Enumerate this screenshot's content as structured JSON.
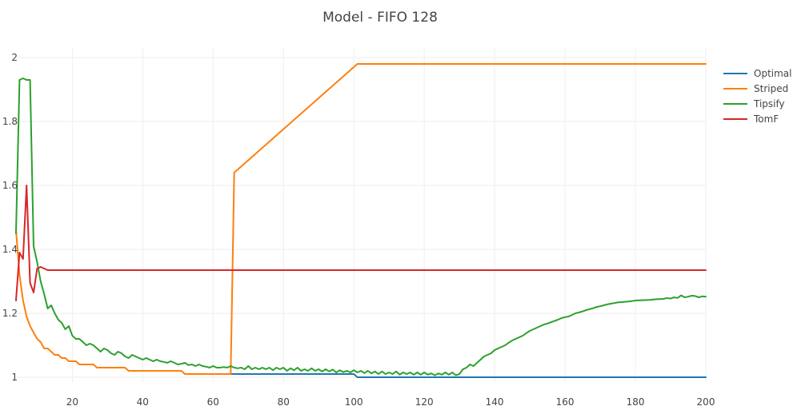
{
  "chart_data": {
    "type": "line",
    "title": "Model - FIFO 128",
    "xlabel": "",
    "ylabel": "",
    "xlim": [
      4,
      200
    ],
    "ylim": [
      0.985,
      2.03
    ],
    "xticks": [
      20,
      40,
      60,
      80,
      100,
      120,
      140,
      160,
      180,
      200
    ],
    "yticks": [
      1,
      1.2,
      1.4,
      1.6,
      1.8,
      2
    ],
    "grid": true,
    "legend_position": "top-right",
    "series": [
      {
        "name": "Optimal",
        "color": "#1f77b4",
        "points": [
          [
            65,
            1.01
          ],
          [
            70,
            1.01
          ],
          [
            80,
            1.01
          ],
          [
            90,
            1.01
          ],
          [
            100,
            1.01
          ],
          [
            101,
            1.0
          ],
          [
            120,
            1.0
          ],
          [
            140,
            1.0
          ],
          [
            160,
            1.0
          ],
          [
            180,
            1.0
          ],
          [
            200,
            1.0
          ]
        ]
      },
      {
        "name": "Striped",
        "color": "#ff7f0e",
        "points": [
          [
            4,
            1.46
          ],
          [
            5,
            1.32
          ],
          [
            6,
            1.24
          ],
          [
            7,
            1.19
          ],
          [
            8,
            1.16
          ],
          [
            9,
            1.14
          ],
          [
            10,
            1.12
          ],
          [
            11,
            1.11
          ],
          [
            12,
            1.09
          ],
          [
            13,
            1.09
          ],
          [
            14,
            1.08
          ],
          [
            15,
            1.07
          ],
          [
            16,
            1.07
          ],
          [
            17,
            1.06
          ],
          [
            18,
            1.06
          ],
          [
            19,
            1.05
          ],
          [
            20,
            1.05
          ],
          [
            21,
            1.05
          ],
          [
            22,
            1.04
          ],
          [
            23,
            1.04
          ],
          [
            26,
            1.04
          ],
          [
            27,
            1.03
          ],
          [
            35,
            1.03
          ],
          [
            36,
            1.02
          ],
          [
            51,
            1.02
          ],
          [
            52,
            1.01
          ],
          [
            65,
            1.01
          ],
          [
            66,
            1.64
          ],
          [
            101,
            1.98
          ],
          [
            120,
            1.98
          ],
          [
            140,
            1.98
          ],
          [
            160,
            1.98
          ],
          [
            180,
            1.98
          ],
          [
            200,
            1.98
          ]
        ]
      },
      {
        "name": "Tipsify",
        "color": "#2ca02c",
        "points": [
          [
            4,
            1.45
          ],
          [
            5,
            1.93
          ],
          [
            6,
            1.935
          ],
          [
            7,
            1.93
          ],
          [
            8,
            1.93
          ],
          [
            9,
            1.41
          ],
          [
            10,
            1.36
          ],
          [
            11,
            1.3
          ],
          [
            12,
            1.26
          ],
          [
            13,
            1.215
          ],
          [
            14,
            1.225
          ],
          [
            15,
            1.2
          ],
          [
            16,
            1.18
          ],
          [
            17,
            1.17
          ],
          [
            18,
            1.15
          ],
          [
            19,
            1.16
          ],
          [
            20,
            1.13
          ],
          [
            21,
            1.12
          ],
          [
            22,
            1.12
          ],
          [
            23,
            1.11
          ],
          [
            24,
            1.1
          ],
          [
            25,
            1.105
          ],
          [
            26,
            1.1
          ],
          [
            27,
            1.09
          ],
          [
            28,
            1.08
          ],
          [
            29,
            1.09
          ],
          [
            30,
            1.085
          ],
          [
            31,
            1.075
          ],
          [
            32,
            1.07
          ],
          [
            33,
            1.08
          ],
          [
            34,
            1.075
          ],
          [
            35,
            1.065
          ],
          [
            36,
            1.06
          ],
          [
            37,
            1.07
          ],
          [
            38,
            1.065
          ],
          [
            39,
            1.06
          ],
          [
            40,
            1.055
          ],
          [
            41,
            1.06
          ],
          [
            42,
            1.055
          ],
          [
            43,
            1.05
          ],
          [
            44,
            1.055
          ],
          [
            45,
            1.05
          ],
          [
            46,
            1.048
          ],
          [
            47,
            1.045
          ],
          [
            48,
            1.05
          ],
          [
            49,
            1.045
          ],
          [
            50,
            1.04
          ],
          [
            51,
            1.042
          ],
          [
            52,
            1.045
          ],
          [
            53,
            1.038
          ],
          [
            54,
            1.04
          ],
          [
            55,
            1.035
          ],
          [
            56,
            1.04
          ],
          [
            57,
            1.035
          ],
          [
            58,
            1.033
          ],
          [
            59,
            1.03
          ],
          [
            60,
            1.035
          ],
          [
            61,
            1.03
          ],
          [
            62,
            1.03
          ],
          [
            63,
            1.032
          ],
          [
            64,
            1.03
          ],
          [
            65,
            1.035
          ],
          [
            66,
            1.03
          ],
          [
            67,
            1.028
          ],
          [
            68,
            1.03
          ],
          [
            69,
            1.025
          ],
          [
            70,
            1.035
          ],
          [
            71,
            1.025
          ],
          [
            72,
            1.03
          ],
          [
            73,
            1.025
          ],
          [
            74,
            1.03
          ],
          [
            75,
            1.025
          ],
          [
            76,
            1.03
          ],
          [
            77,
            1.022
          ],
          [
            78,
            1.03
          ],
          [
            79,
            1.025
          ],
          [
            80,
            1.03
          ],
          [
            81,
            1.02
          ],
          [
            82,
            1.028
          ],
          [
            83,
            1.022
          ],
          [
            84,
            1.03
          ],
          [
            85,
            1.02
          ],
          [
            86,
            1.025
          ],
          [
            87,
            1.02
          ],
          [
            88,
            1.028
          ],
          [
            89,
            1.02
          ],
          [
            90,
            1.025
          ],
          [
            91,
            1.018
          ],
          [
            92,
            1.025
          ],
          [
            93,
            1.018
          ],
          [
            94,
            1.024
          ],
          [
            95,
            1.015
          ],
          [
            96,
            1.022
          ],
          [
            97,
            1.016
          ],
          [
            98,
            1.02
          ],
          [
            99,
            1.015
          ],
          [
            100,
            1.022
          ],
          [
            101,
            1.015
          ],
          [
            102,
            1.02
          ],
          [
            103,
            1.013
          ],
          [
            104,
            1.02
          ],
          [
            105,
            1.012
          ],
          [
            106,
            1.018
          ],
          [
            107,
            1.01
          ],
          [
            108,
            1.018
          ],
          [
            109,
            1.01
          ],
          [
            110,
            1.015
          ],
          [
            111,
            1.01
          ],
          [
            112,
            1.018
          ],
          [
            113,
            1.008
          ],
          [
            114,
            1.015
          ],
          [
            115,
            1.01
          ],
          [
            116,
            1.015
          ],
          [
            117,
            1.008
          ],
          [
            118,
            1.015
          ],
          [
            119,
            1.008
          ],
          [
            120,
            1.015
          ],
          [
            121,
            1.008
          ],
          [
            122,
            1.012
          ],
          [
            123,
            1.006
          ],
          [
            124,
            1.012
          ],
          [
            125,
            1.008
          ],
          [
            126,
            1.015
          ],
          [
            127,
            1.008
          ],
          [
            128,
            1.015
          ],
          [
            129,
            1.006
          ],
          [
            130,
            1.01
          ],
          [
            131,
            1.025
          ],
          [
            132,
            1.03
          ],
          [
            133,
            1.04
          ],
          [
            134,
            1.035
          ],
          [
            135,
            1.045
          ],
          [
            136,
            1.055
          ],
          [
            137,
            1.065
          ],
          [
            138,
            1.07
          ],
          [
            139,
            1.075
          ],
          [
            140,
            1.085
          ],
          [
            141,
            1.09
          ],
          [
            142,
            1.095
          ],
          [
            143,
            1.1
          ],
          [
            144,
            1.108
          ],
          [
            145,
            1.115
          ],
          [
            146,
            1.12
          ],
          [
            147,
            1.125
          ],
          [
            148,
            1.13
          ],
          [
            149,
            1.138
          ],
          [
            150,
            1.145
          ],
          [
            151,
            1.15
          ],
          [
            152,
            1.155
          ],
          [
            153,
            1.16
          ],
          [
            154,
            1.165
          ],
          [
            155,
            1.168
          ],
          [
            156,
            1.172
          ],
          [
            157,
            1.176
          ],
          [
            158,
            1.18
          ],
          [
            159,
            1.185
          ],
          [
            160,
            1.188
          ],
          [
            161,
            1.19
          ],
          [
            162,
            1.195
          ],
          [
            163,
            1.2
          ],
          [
            164,
            1.203
          ],
          [
            165,
            1.206
          ],
          [
            166,
            1.21
          ],
          [
            167,
            1.213
          ],
          [
            168,
            1.216
          ],
          [
            169,
            1.22
          ],
          [
            170,
            1.222
          ],
          [
            171,
            1.225
          ],
          [
            172,
            1.228
          ],
          [
            173,
            1.23
          ],
          [
            174,
            1.232
          ],
          [
            175,
            1.234
          ],
          [
            176,
            1.235
          ],
          [
            177,
            1.236
          ],
          [
            178,
            1.237
          ],
          [
            179,
            1.238
          ],
          [
            180,
            1.24
          ],
          [
            182,
            1.241
          ],
          [
            184,
            1.242
          ],
          [
            186,
            1.244
          ],
          [
            188,
            1.245
          ],
          [
            189,
            1.248
          ],
          [
            190,
            1.246
          ],
          [
            191,
            1.25
          ],
          [
            192,
            1.248
          ],
          [
            193,
            1.256
          ],
          [
            194,
            1.25
          ],
          [
            195,
            1.252
          ],
          [
            196,
            1.255
          ],
          [
            197,
            1.254
          ],
          [
            198,
            1.25
          ],
          [
            199,
            1.253
          ],
          [
            200,
            1.252
          ]
        ]
      },
      {
        "name": "TomF",
        "color": "#d62728",
        "points": [
          [
            4,
            1.24
          ],
          [
            5,
            1.39
          ],
          [
            6,
            1.37
          ],
          [
            7,
            1.6
          ],
          [
            8,
            1.295
          ],
          [
            9,
            1.265
          ],
          [
            10,
            1.34
          ],
          [
            11,
            1.345
          ],
          [
            12,
            1.34
          ],
          [
            13,
            1.335
          ],
          [
            20,
            1.335
          ],
          [
            40,
            1.335
          ],
          [
            60,
            1.335
          ],
          [
            80,
            1.335
          ],
          [
            100,
            1.335
          ],
          [
            120,
            1.335
          ],
          [
            140,
            1.335
          ],
          [
            160,
            1.335
          ],
          [
            180,
            1.335
          ],
          [
            200,
            1.335
          ]
        ]
      }
    ]
  }
}
